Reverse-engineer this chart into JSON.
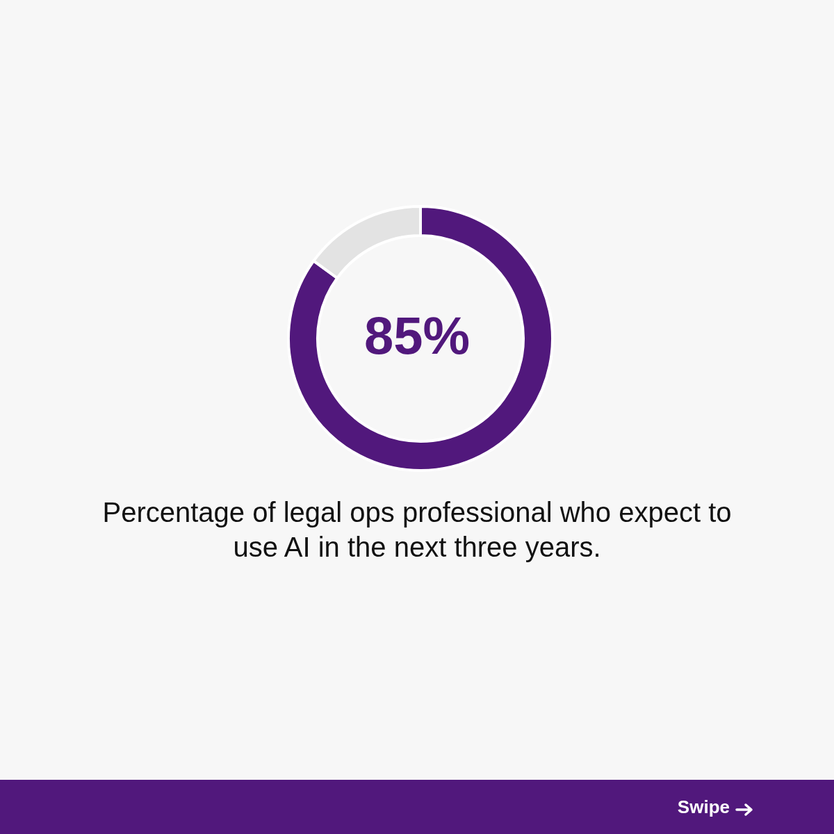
{
  "chart_data": {
    "type": "donut",
    "title": "Percentage of legal ops professional who expect to use AI in the next three years.",
    "categories": [
      null,
      null
    ],
    "values": [
      85,
      15
    ],
    "colors": [
      "#51187c",
      "#e3e3e3"
    ],
    "value_labels": [
      "85%",
      null
    ],
    "annotations": [
      "Swipe"
    ]
  }
}
